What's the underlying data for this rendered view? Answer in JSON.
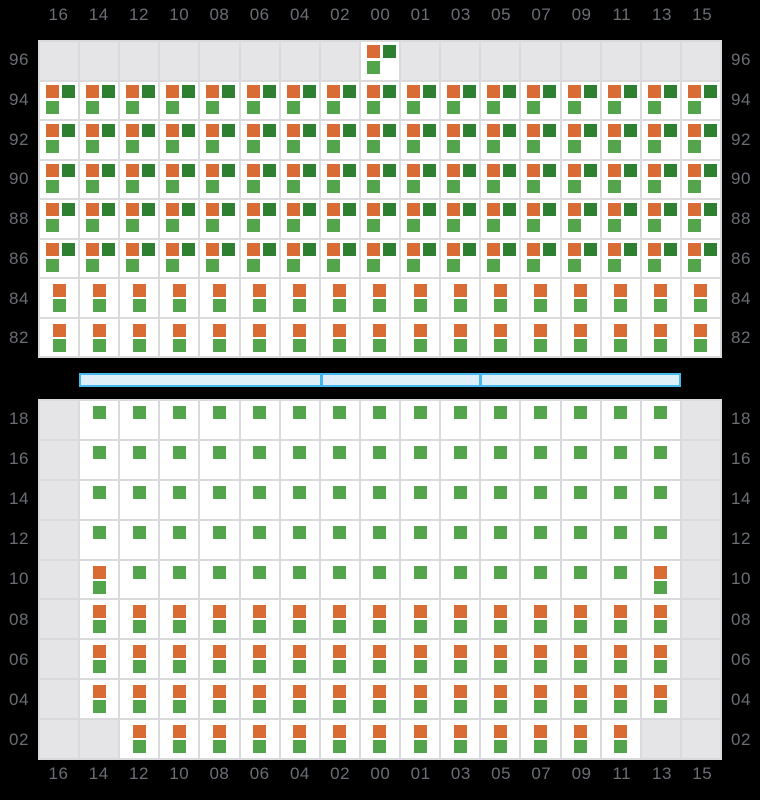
{
  "colors": {
    "background": "#000000",
    "cell_bg": "#ffffff",
    "cell_empty": "#e5e4e7",
    "grid_line": "#dadadc",
    "label": "#6a6e75",
    "orange": "#d96b35",
    "dark_green": "#2e8030",
    "green": "#54a44b",
    "aisle_fill": "#ddeef9",
    "aisle_border": "#45b8ec"
  },
  "chart_data": {
    "type": "heatmap",
    "columns": [
      "16",
      "14",
      "12",
      "10",
      "08",
      "06",
      "04",
      "02",
      "00",
      "01",
      "03",
      "05",
      "07",
      "09",
      "11",
      "13",
      "15"
    ],
    "axis_labels_repeated": "column labels shown on top and bottom; row labels shown on left and right",
    "cell_codes": {
      "E": "empty gray cell",
      "T": "trio: orange top-left + dark-green top-right + green bottom-left",
      "S": "stack: orange over green, centered",
      "G": "single green square, top center"
    },
    "sections": [
      {
        "name": "upper",
        "row_labels": [
          "96",
          "94",
          "92",
          "90",
          "88",
          "86",
          "84",
          "82"
        ],
        "cells": [
          "EEEEEEEETEEEEEEEE",
          "TTTTTTTTTTTTTTTTT",
          "TTTTTTTTTTTTTTTTT",
          "TTTTTTTTTTTTTTTTT",
          "TTTTTTTTTTTTTTTTT",
          "TTTTTTTTTTTTTTTTT",
          "SSSSSSSSSSSSSSSSS",
          "SSSSSSSSSSSSSSSSS"
        ]
      },
      {
        "name": "lower",
        "row_labels": [
          "18",
          "16",
          "14",
          "12",
          "10",
          "08",
          "06",
          "04",
          "02"
        ],
        "cells": [
          "EGGGGGGGGGGGGGGGE",
          "EGGGGGGGGGGGGGGGE",
          "EGGGGGGGGGGGGGGGE",
          "EGGGGGGGGGGGGGGGE",
          "ESGGGGGGGGGGGGGSE",
          "ESSSSSSSSSSSSSSSE",
          "ESSSSSSSSSSSSSSSE",
          "ESSSSSSSSSSSSSSSE",
          "EESSSSSSSSSSSSSEE"
        ]
      }
    ],
    "aisle": {
      "segments": 3
    }
  }
}
